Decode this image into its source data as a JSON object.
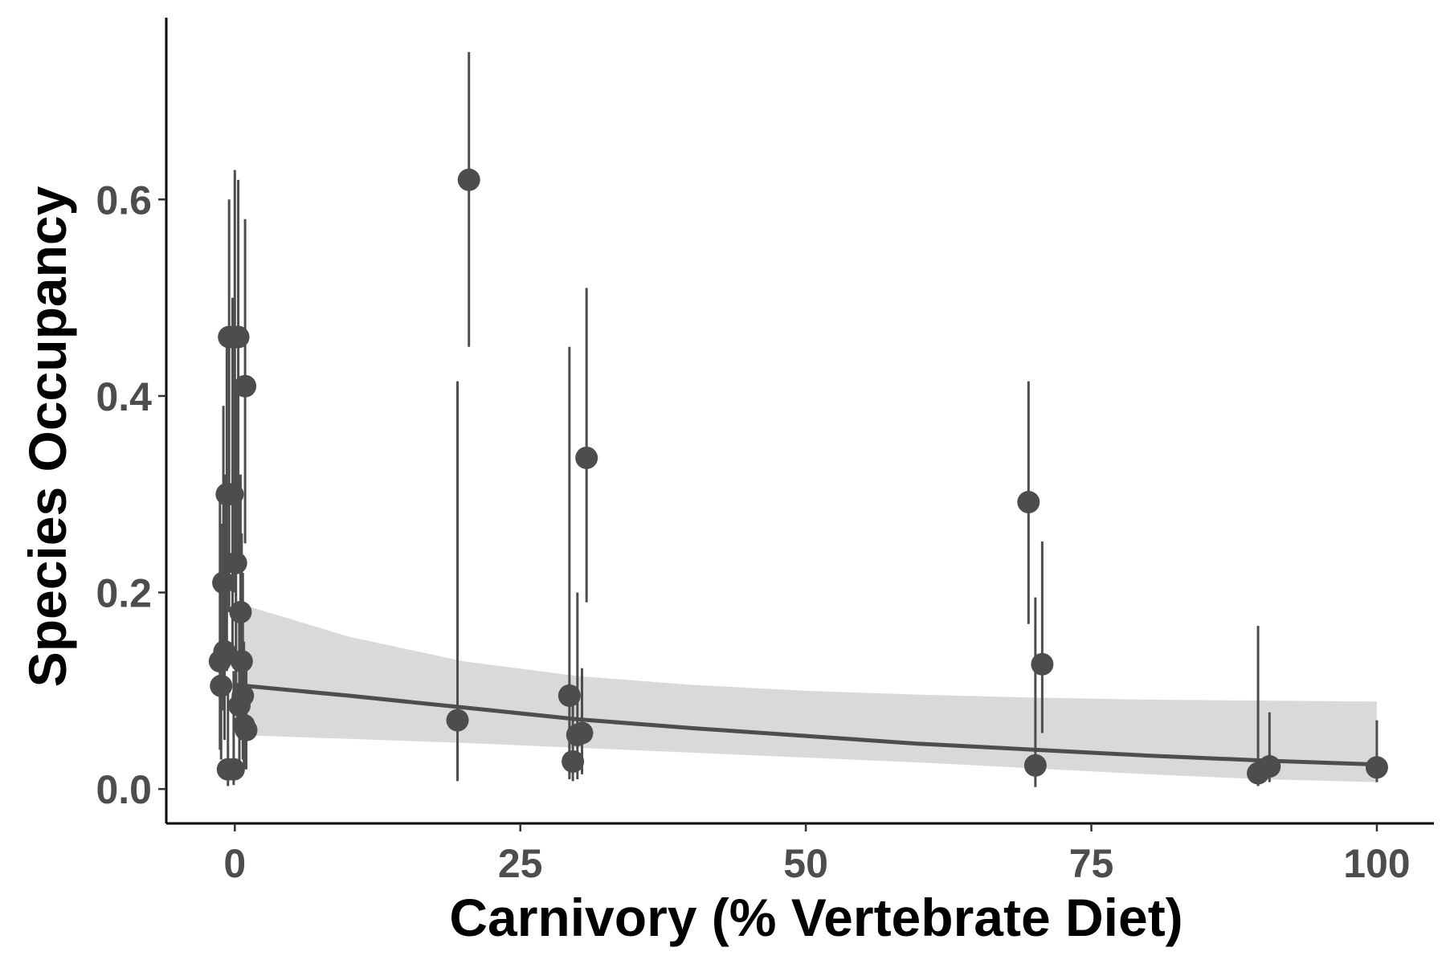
{
  "chart_data": {
    "type": "scatter",
    "title": "",
    "xlabel": "Carnivory (% Vertebrate Diet)",
    "ylabel": "Species Occupancy",
    "xlim": [
      -6,
      105
    ],
    "ylim": [
      -0.035,
      0.785
    ],
    "x_ticks": [
      0,
      25,
      50,
      75,
      100
    ],
    "x_tick_labels": [
      "0",
      "25",
      "50",
      "75",
      "100"
    ],
    "y_ticks": [
      0.0,
      0.2,
      0.4,
      0.6
    ],
    "y_tick_labels": [
      "0.0",
      "0.2",
      "0.4",
      "0.6"
    ],
    "grid": false,
    "legend": "none",
    "point_color": "#4d4d4d",
    "band_color": "#d9d9d9",
    "points": [
      {
        "x": -0.5,
        "y": 0.46,
        "lower": 0.18,
        "upper": 0.6
      },
      {
        "x": 0.0,
        "y": 0.46,
        "lower": 0.2,
        "upper": 0.63
      },
      {
        "x": 0.3,
        "y": 0.46,
        "lower": 0.22,
        "upper": 0.62
      },
      {
        "x": 0.9,
        "y": 0.41,
        "lower": 0.25,
        "upper": 0.58
      },
      {
        "x": -0.7,
        "y": 0.3,
        "lower": 0.12,
        "upper": 0.47
      },
      {
        "x": -0.2,
        "y": 0.3,
        "lower": 0.14,
        "upper": 0.5
      },
      {
        "x": 0.1,
        "y": 0.23,
        "lower": 0.08,
        "upper": 0.41
      },
      {
        "x": -1.0,
        "y": 0.21,
        "lower": 0.08,
        "upper": 0.39
      },
      {
        "x": 0.5,
        "y": 0.18,
        "lower": 0.06,
        "upper": 0.32
      },
      {
        "x": -1.3,
        "y": 0.13,
        "lower": 0.04,
        "upper": 0.3
      },
      {
        "x": -0.9,
        "y": 0.14,
        "lower": 0.05,
        "upper": 0.32
      },
      {
        "x": 0.6,
        "y": 0.13,
        "lower": 0.05,
        "upper": 0.26
      },
      {
        "x": -1.2,
        "y": 0.105,
        "lower": 0.03,
        "upper": 0.27
      },
      {
        "x": 0.7,
        "y": 0.095,
        "lower": 0.03,
        "upper": 0.22
      },
      {
        "x": 0.4,
        "y": 0.085,
        "lower": 0.02,
        "upper": 0.18
      },
      {
        "x": 0.8,
        "y": 0.065,
        "lower": 0.02,
        "upper": 0.15
      },
      {
        "x": 1.0,
        "y": 0.06,
        "lower": 0.02,
        "upper": 0.14
      },
      {
        "x": -0.6,
        "y": 0.02,
        "lower": 0.003,
        "upper": 0.1
      },
      {
        "x": -0.1,
        "y": 0.02,
        "lower": 0.004,
        "upper": 0.12
      },
      {
        "x": 19.5,
        "y": 0.07,
        "lower": 0.008,
        "upper": 0.415
      },
      {
        "x": 20.5,
        "y": 0.62,
        "lower": 0.45,
        "upper": 0.75
      },
      {
        "x": 29.3,
        "y": 0.095,
        "lower": 0.01,
        "upper": 0.45
      },
      {
        "x": 29.6,
        "y": 0.028,
        "lower": 0.008,
        "upper": 0.1
      },
      {
        "x": 30.0,
        "y": 0.055,
        "lower": 0.01,
        "upper": 0.2
      },
      {
        "x": 30.4,
        "y": 0.057,
        "lower": 0.015,
        "upper": 0.123
      },
      {
        "x": 30.8,
        "y": 0.337,
        "lower": 0.19,
        "upper": 0.51
      },
      {
        "x": 69.5,
        "y": 0.292,
        "lower": 0.168,
        "upper": 0.415
      },
      {
        "x": 70.1,
        "y": 0.024,
        "lower": 0.002,
        "upper": 0.195
      },
      {
        "x": 70.7,
        "y": 0.127,
        "lower": 0.057,
        "upper": 0.252
      },
      {
        "x": 89.6,
        "y": 0.016,
        "lower": 0.003,
        "upper": 0.166
      },
      {
        "x": 90.6,
        "y": 0.023,
        "lower": 0.007,
        "upper": 0.078
      },
      {
        "x": 100.0,
        "y": 0.022,
        "lower": 0.007,
        "upper": 0.07
      }
    ],
    "fit_line": {
      "x": [
        0,
        10,
        20,
        30,
        40,
        50,
        60,
        70,
        80,
        90,
        100
      ],
      "y": [
        0.106,
        0.095,
        0.083,
        0.071,
        0.062,
        0.054,
        0.046,
        0.04,
        0.034,
        0.029,
        0.025
      ]
    },
    "confidence_band": {
      "x": [
        0,
        10,
        20,
        30,
        40,
        50,
        60,
        70,
        80,
        90,
        100
      ],
      "lower": [
        0.055,
        0.051,
        0.047,
        0.042,
        0.037,
        0.032,
        0.027,
        0.021,
        0.015,
        0.01,
        0.007
      ],
      "upper": [
        0.19,
        0.155,
        0.13,
        0.115,
        0.106,
        0.1,
        0.096,
        0.093,
        0.091,
        0.09,
        0.089
      ]
    }
  }
}
